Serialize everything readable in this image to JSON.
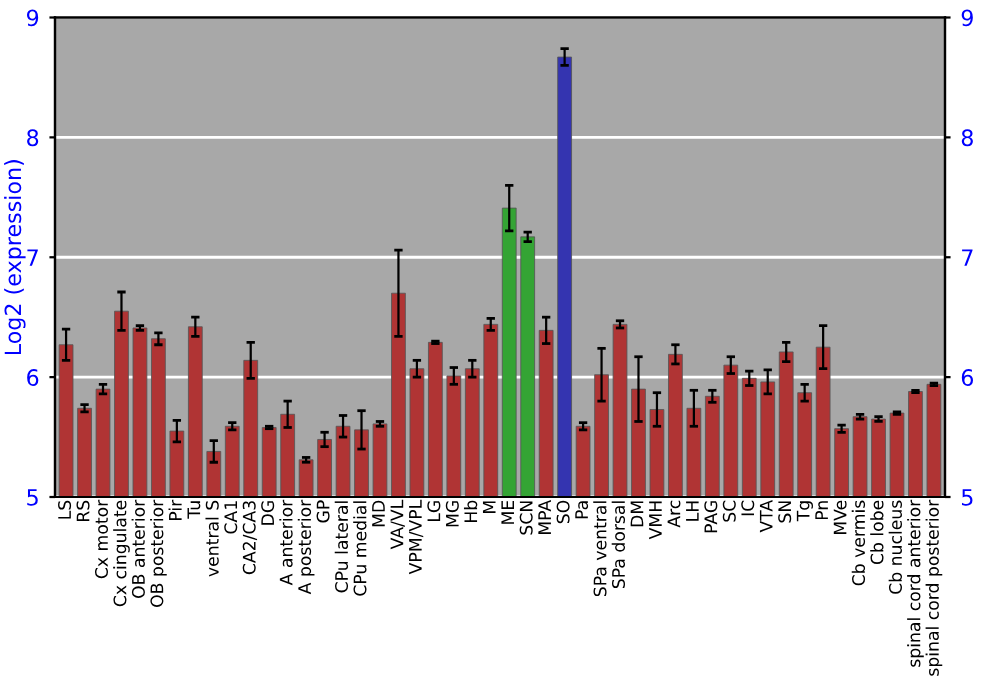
{
  "chart_data": {
    "type": "bar",
    "ylabel": "Log2 (expression)",
    "categories": [
      "LS",
      "RS",
      "Cx motor",
      "Cx cingulate",
      "OB anterior",
      "OB posterior",
      "Pir",
      "Tu",
      "ventral S",
      "CA1",
      "CA2/CA3",
      "DG",
      "A anterior",
      "A posterior",
      "GP",
      "CPu lateral",
      "CPu medial",
      "MD",
      "VA/VL",
      "VPM/VPL",
      "LG",
      "MG",
      "Hb",
      "M",
      "ME",
      "SCN",
      "MPA",
      "SO",
      "Pa",
      "SPa ventral",
      "SPa dorsal",
      "DM",
      "VMH",
      "Arc",
      "LH",
      "PAG",
      "SC",
      "IC",
      "VTA",
      "SN",
      "Tg",
      "Pn",
      "MVe",
      "Cb vermis",
      "Cb lobe",
      "Cb nucleus",
      "spinal cord anterior",
      "spinal cord posterior"
    ],
    "values": [
      6.27,
      5.74,
      5.9,
      6.55,
      6.41,
      6.32,
      5.55,
      6.42,
      5.38,
      5.59,
      6.14,
      5.58,
      5.69,
      5.31,
      5.48,
      5.59,
      5.56,
      5.61,
      6.7,
      6.07,
      6.29,
      6.01,
      6.07,
      6.44,
      7.41,
      7.17,
      6.39,
      8.67,
      5.59,
      6.02,
      6.44,
      5.9,
      5.73,
      6.19,
      5.74,
      5.84,
      6.1,
      5.99,
      5.96,
      6.21,
      5.87,
      6.25,
      5.57,
      5.67,
      5.65,
      5.7,
      5.88,
      5.94
    ],
    "errors": [
      0.13,
      0.03,
      0.04,
      0.16,
      0.02,
      0.05,
      0.09,
      0.08,
      0.09,
      0.03,
      0.15,
      0.01,
      0.11,
      0.02,
      0.06,
      0.09,
      0.16,
      0.02,
      0.36,
      0.07,
      0.01,
      0.07,
      0.07,
      0.05,
      0.19,
      0.04,
      0.11,
      0.07,
      0.03,
      0.22,
      0.03,
      0.27,
      0.14,
      0.08,
      0.15,
      0.05,
      0.07,
      0.06,
      0.1,
      0.08,
      0.07,
      0.18,
      0.03,
      0.02,
      0.02,
      0.01,
      0.01,
      0.01
    ],
    "colors": [
      "#b03434",
      "#b03434",
      "#b03434",
      "#b03434",
      "#b03434",
      "#b03434",
      "#b03434",
      "#b03434",
      "#b03434",
      "#b03434",
      "#b03434",
      "#b03434",
      "#b03434",
      "#b03434",
      "#b03434",
      "#b03434",
      "#b03434",
      "#b03434",
      "#b03434",
      "#b03434",
      "#b03434",
      "#b03434",
      "#b03434",
      "#b03434",
      "#34a434",
      "#34a434",
      "#b03434",
      "#3434b0",
      "#b03434",
      "#b03434",
      "#b03434",
      "#b03434",
      "#b03434",
      "#b03434",
      "#b03434",
      "#b03434",
      "#b03434",
      "#b03434",
      "#b03434",
      "#b03434",
      "#b03434",
      "#b03434",
      "#b03434",
      "#b03434",
      "#b03434",
      "#b03434",
      "#b03434",
      "#b03434"
    ],
    "ylim": [
      5,
      9
    ],
    "yticks": [
      5,
      6,
      7,
      8,
      9
    ],
    "y2lim": [
      5,
      9
    ],
    "y2ticks": [
      5,
      6,
      7,
      8,
      9
    ],
    "grid": "y"
  }
}
